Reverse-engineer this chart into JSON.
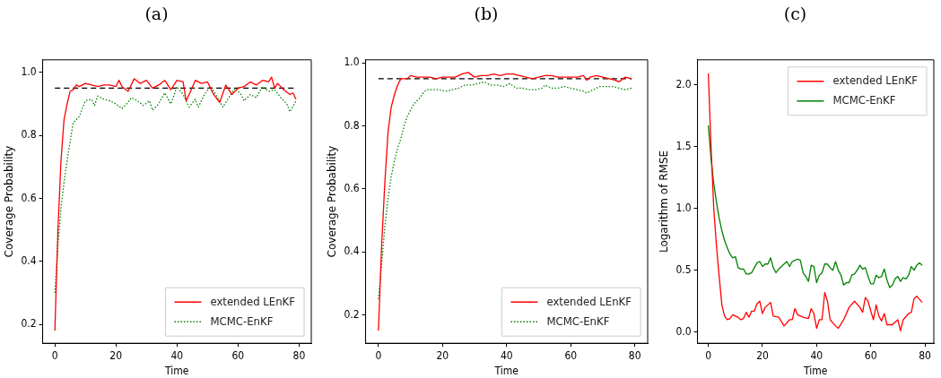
{
  "chart_data": [
    {
      "type": "line",
      "title": "(a)",
      "xlabel": "Time",
      "ylabel": "Coverage Probability",
      "xlim": [
        -4,
        84
      ],
      "ylim": [
        0.14,
        1.04
      ],
      "xticks": [
        0,
        20,
        40,
        60,
        80
      ],
      "yticks": [
        0.2,
        0.4,
        0.6,
        0.8,
        {
          "value": 1,
          "label": "1.0"
        }
      ],
      "legend": "bottom right",
      "grid": false,
      "marker": "none",
      "ref_lines": [
        {
          "axis": "y",
          "value": 0.95,
          "color": "#000000",
          "line_style": "dashed"
        }
      ],
      "series": [
        {
          "name": "extended LEnKF",
          "color": "#ff0000",
          "line_style": "solid",
          "x": [
            0,
            1,
            2,
            3,
            4,
            5,
            6,
            7,
            8,
            10,
            12,
            14,
            16,
            18,
            20,
            21,
            22,
            24,
            26,
            28,
            30,
            32,
            34,
            36,
            38,
            40,
            42,
            43,
            44,
            46,
            48,
            50,
            52,
            54,
            56,
            58,
            60,
            62,
            64,
            66,
            68,
            70,
            71,
            72,
            73,
            75,
            77,
            78,
            79
          ],
          "values": [
            0.18,
            0.5,
            0.72,
            0.85,
            0.9,
            0.94,
            0.945,
            0.96,
            0.955,
            0.965,
            0.96,
            0.955,
            0.96,
            0.96,
            0.955,
            0.975,
            0.955,
            0.94,
            0.98,
            0.965,
            0.975,
            0.95,
            0.96,
            0.975,
            0.945,
            0.975,
            0.97,
            0.91,
            0.93,
            0.975,
            0.965,
            0.97,
            0.93,
            0.905,
            0.96,
            0.93,
            0.95,
            0.955,
            0.97,
            0.96,
            0.975,
            0.97,
            0.985,
            0.95,
            0.965,
            0.945,
            0.93,
            0.935,
            0.915
          ]
        },
        {
          "name": "MCMC-EnKF",
          "color": "#008000",
          "line_style": "dotted",
          "x": [
            0,
            1,
            2,
            3,
            4,
            5,
            6,
            8,
            10,
            12,
            13,
            14,
            16,
            18,
            20,
            22,
            24,
            25,
            27,
            29,
            31,
            32,
            34,
            36,
            38,
            40,
            42,
            44,
            46,
            47,
            49,
            51,
            53,
            55,
            57,
            59,
            61,
            62,
            64,
            66,
            68,
            70,
            72,
            74,
            76,
            77,
            79
          ],
          "values": [
            0.3,
            0.45,
            0.57,
            0.65,
            0.72,
            0.78,
            0.84,
            0.86,
            0.91,
            0.915,
            0.895,
            0.925,
            0.915,
            0.91,
            0.9,
            0.885,
            0.905,
            0.92,
            0.91,
            0.895,
            0.91,
            0.88,
            0.9,
            0.935,
            0.9,
            0.955,
            0.93,
            0.89,
            0.915,
            0.89,
            0.93,
            0.955,
            0.925,
            0.89,
            0.92,
            0.95,
            0.93,
            0.91,
            0.93,
            0.92,
            0.955,
            0.94,
            0.945,
            0.92,
            0.9,
            0.875,
            0.91
          ]
        }
      ]
    },
    {
      "type": "line",
      "title": "(b)",
      "xlabel": "Time",
      "ylabel": "Coverage Probability",
      "xlim": [
        -4,
        84
      ],
      "ylim": [
        0.11,
        1.01
      ],
      "xticks": [
        0,
        20,
        40,
        60,
        80
      ],
      "yticks": [
        0.2,
        0.4,
        0.6,
        0.8,
        {
          "value": 1,
          "label": "1.0"
        }
      ],
      "legend": "bottom right",
      "grid": false,
      "marker": "none",
      "ref_lines": [
        {
          "axis": "y",
          "value": 0.95,
          "color": "#000000",
          "line_style": "dashed"
        }
      ],
      "series": [
        {
          "name": "extended LEnKF",
          "color": "#ff0000",
          "line_style": "solid",
          "x": [
            0,
            1,
            2,
            3,
            4,
            5,
            6,
            7,
            9,
            10,
            12,
            14,
            16,
            18,
            20,
            22,
            24,
            26,
            28,
            30,
            32,
            34,
            36,
            38,
            40,
            42,
            44,
            46,
            48,
            50,
            52,
            54,
            56,
            58,
            60,
            62,
            64,
            65,
            66,
            68,
            70,
            72,
            74,
            75,
            77,
            79
          ],
          "values": [
            0.15,
            0.42,
            0.62,
            0.78,
            0.86,
            0.9,
            0.93,
            0.95,
            0.95,
            0.96,
            0.955,
            0.955,
            0.955,
            0.95,
            0.955,
            0.955,
            0.955,
            0.965,
            0.97,
            0.955,
            0.96,
            0.96,
            0.965,
            0.96,
            0.965,
            0.965,
            0.96,
            0.955,
            0.95,
            0.955,
            0.96,
            0.96,
            0.955,
            0.955,
            0.955,
            0.955,
            0.96,
            0.945,
            0.955,
            0.96,
            0.955,
            0.95,
            0.945,
            0.94,
            0.955,
            0.95
          ]
        },
        {
          "name": "MCMC-EnKF",
          "color": "#008000",
          "line_style": "dotted",
          "x": [
            0,
            1,
            2,
            3,
            4,
            5,
            6,
            7,
            8,
            9,
            10,
            11,
            12,
            13,
            14,
            15,
            17,
            19,
            21,
            23,
            25,
            27,
            29,
            31,
            33,
            35,
            37,
            39,
            41,
            43,
            45,
            47,
            49,
            51,
            52,
            54,
            56,
            58,
            60,
            62,
            64,
            65,
            67,
            69,
            71,
            73,
            75,
            77,
            79
          ],
          "values": [
            0.25,
            0.36,
            0.48,
            0.57,
            0.64,
            0.69,
            0.73,
            0.76,
            0.8,
            0.83,
            0.85,
            0.87,
            0.88,
            0.89,
            0.905,
            0.915,
            0.915,
            0.915,
            0.91,
            0.915,
            0.92,
            0.93,
            0.93,
            0.935,
            0.94,
            0.93,
            0.93,
            0.925,
            0.935,
            0.92,
            0.92,
            0.915,
            0.915,
            0.92,
            0.93,
            0.92,
            0.92,
            0.925,
            0.92,
            0.915,
            0.91,
            0.905,
            0.915,
            0.925,
            0.925,
            0.925,
            0.92,
            0.915,
            0.92
          ]
        }
      ]
    },
    {
      "type": "line",
      "title": "(c)",
      "xlabel": "Time",
      "ylabel": "Logarithm of RMSE",
      "xlim": [
        -4,
        83.3
      ],
      "ylim": [
        -0.09,
        2.2
      ],
      "xticks": [
        0,
        20,
        40,
        60,
        80
      ],
      "yticks": [
        {
          "value": 0,
          "label": "0.0"
        },
        0.5,
        {
          "value": 1,
          "label": "1.0"
        },
        1.5,
        {
          "value": 2,
          "label": "2.0"
        }
      ],
      "legend": "top right",
      "grid": false,
      "marker": "none",
      "series": [
        {
          "name": "extended LEnKF",
          "color": "#ff0000",
          "line_style": "solid",
          "x": [
            0,
            1,
            2,
            3,
            4,
            5,
            6,
            7,
            8,
            9,
            10,
            11,
            12,
            13,
            14,
            15,
            16,
            17,
            18,
            19,
            20,
            21,
            23,
            24,
            26,
            28,
            30,
            31,
            32,
            33,
            35,
            37,
            38,
            39,
            40,
            41,
            42,
            43,
            44,
            45,
            47,
            48,
            50,
            52,
            54,
            56,
            57,
            58,
            59,
            60,
            61,
            62,
            63,
            64,
            65,
            66,
            68,
            70,
            71,
            72,
            74,
            75,
            76,
            77,
            79
          ],
          "values": [
            2.09,
            1.5,
            1.0,
            0.7,
            0.45,
            0.22,
            0.13,
            0.1,
            0.11,
            0.14,
            0.13,
            0.12,
            0.1,
            0.11,
            0.16,
            0.12,
            0.17,
            0.17,
            0.23,
            0.25,
            0.15,
            0.2,
            0.24,
            0.13,
            0.12,
            0.05,
            0.1,
            0.1,
            0.19,
            0.14,
            0.12,
            0.11,
            0.19,
            0.15,
            0.03,
            0.1,
            0.1,
            0.32,
            0.25,
            0.1,
            0.05,
            0.03,
            0.1,
            0.2,
            0.25,
            0.2,
            0.16,
            0.28,
            0.25,
            0.17,
            0.1,
            0.22,
            0.13,
            0.09,
            0.15,
            0.06,
            0.06,
            0.1,
            0.01,
            0.1,
            0.15,
            0.16,
            0.27,
            0.29,
            0.24
          ]
        },
        {
          "name": "MCMC-EnKF",
          "color": "#008000",
          "line_style": "solid",
          "x": [
            0,
            1,
            2,
            3,
            4,
            5,
            6,
            7,
            8,
            9,
            10,
            11,
            12,
            13,
            14,
            15,
            16,
            17,
            18,
            19,
            20,
            21,
            22,
            23,
            24,
            25,
            26,
            27,
            28,
            29,
            30,
            31,
            32,
            33,
            34,
            35,
            36,
            37,
            38,
            39,
            40,
            41,
            42,
            43,
            44,
            45,
            46,
            47,
            48,
            49,
            50,
            51,
            52,
            53,
            54,
            55,
            56,
            57,
            58,
            59,
            60,
            61,
            62,
            63,
            64,
            65,
            66,
            67,
            68,
            69,
            70,
            71,
            72,
            73,
            74,
            75,
            76,
            77,
            78,
            79
          ],
          "values": [
            1.67,
            1.4,
            1.2,
            1.05,
            0.92,
            0.82,
            0.74,
            0.68,
            0.63,
            0.6,
            0.61,
            0.52,
            0.51,
            0.51,
            0.47,
            0.47,
            0.48,
            0.52,
            0.56,
            0.57,
            0.53,
            0.55,
            0.55,
            0.6,
            0.52,
            0.48,
            0.51,
            0.53,
            0.55,
            0.57,
            0.53,
            0.57,
            0.58,
            0.59,
            0.58,
            0.48,
            0.45,
            0.41,
            0.54,
            0.53,
            0.4,
            0.46,
            0.48,
            0.55,
            0.55,
            0.52,
            0.5,
            0.57,
            0.5,
            0.46,
            0.38,
            0.4,
            0.4,
            0.46,
            0.47,
            0.5,
            0.54,
            0.51,
            0.52,
            0.45,
            0.39,
            0.39,
            0.46,
            0.44,
            0.45,
            0.51,
            0.42,
            0.36,
            0.38,
            0.43,
            0.45,
            0.41,
            0.44,
            0.43,
            0.46,
            0.53,
            0.5,
            0.54,
            0.56,
            0.54
          ]
        }
      ]
    }
  ]
}
